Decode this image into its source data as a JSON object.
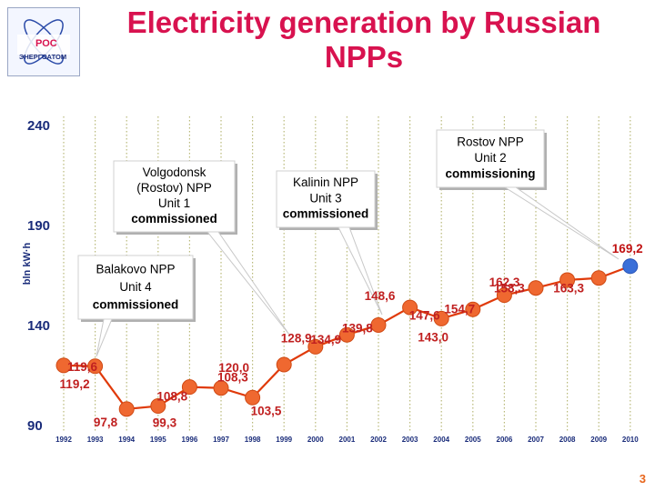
{
  "title": "Electricity generation by Russian NPPs",
  "logo": {
    "top": "РОС",
    "bottom": "ЭНЕРГОАТОМ"
  },
  "page_number": "3",
  "colors": {
    "line": "#e03a0a",
    "marker": "#ef6830",
    "marker_last": "#3a6fd8",
    "grid": "#b9b97a",
    "value_label": "#c02020",
    "axis_text": "#1a2c7a",
    "title": "#d8124f"
  },
  "chart_data": {
    "type": "line",
    "title": "Electricity generation by Russian NPPs",
    "ylabel": "bln kW·h",
    "xlabel": "",
    "ylim": [
      90,
      240
    ],
    "yticks": [
      90,
      140,
      190,
      240
    ],
    "grid": "vertical dotted",
    "x": [
      1992,
      1993,
      1994,
      1995,
      1996,
      1997,
      1998,
      1999,
      2000,
      2001,
      2002,
      2003,
      2004,
      2005,
      2006,
      2007,
      2008,
      2009,
      2010
    ],
    "y": [
      119.6,
      119.2,
      97.8,
      99.3,
      108.8,
      108.3,
      103.5,
      120.0,
      128.9,
      134.9,
      139.8,
      148.6,
      143.0,
      147.6,
      154.7,
      158.3,
      162.3,
      163.3,
      169.2
    ],
    "value_labels": [
      "119,6",
      "119,2",
      "97,8",
      "99,3",
      "108,8",
      "108,3",
      "103,5",
      "120,0",
      "128,9",
      "134,9",
      "139,8",
      "148,6",
      "143,0",
      "147,6",
      "154,7",
      "158,3",
      "162,3",
      "163,3",
      "169,2"
    ],
    "annotations": [
      {
        "lines": [
          "Balakovo NPP",
          "Unit 4",
          "commissioned"
        ],
        "year": 1993
      },
      {
        "lines": [
          "Volgodonsk",
          "(Rostov) NPP",
          "Unit 1",
          "commissioned"
        ],
        "year": 2001
      },
      {
        "lines": [
          "Kalinin NPP",
          "Unit 3",
          "commissioned"
        ],
        "year": 2004
      },
      {
        "lines": [
          "Rostov NPP",
          "Unit 2",
          "commissioning"
        ],
        "year": 2010
      }
    ]
  }
}
